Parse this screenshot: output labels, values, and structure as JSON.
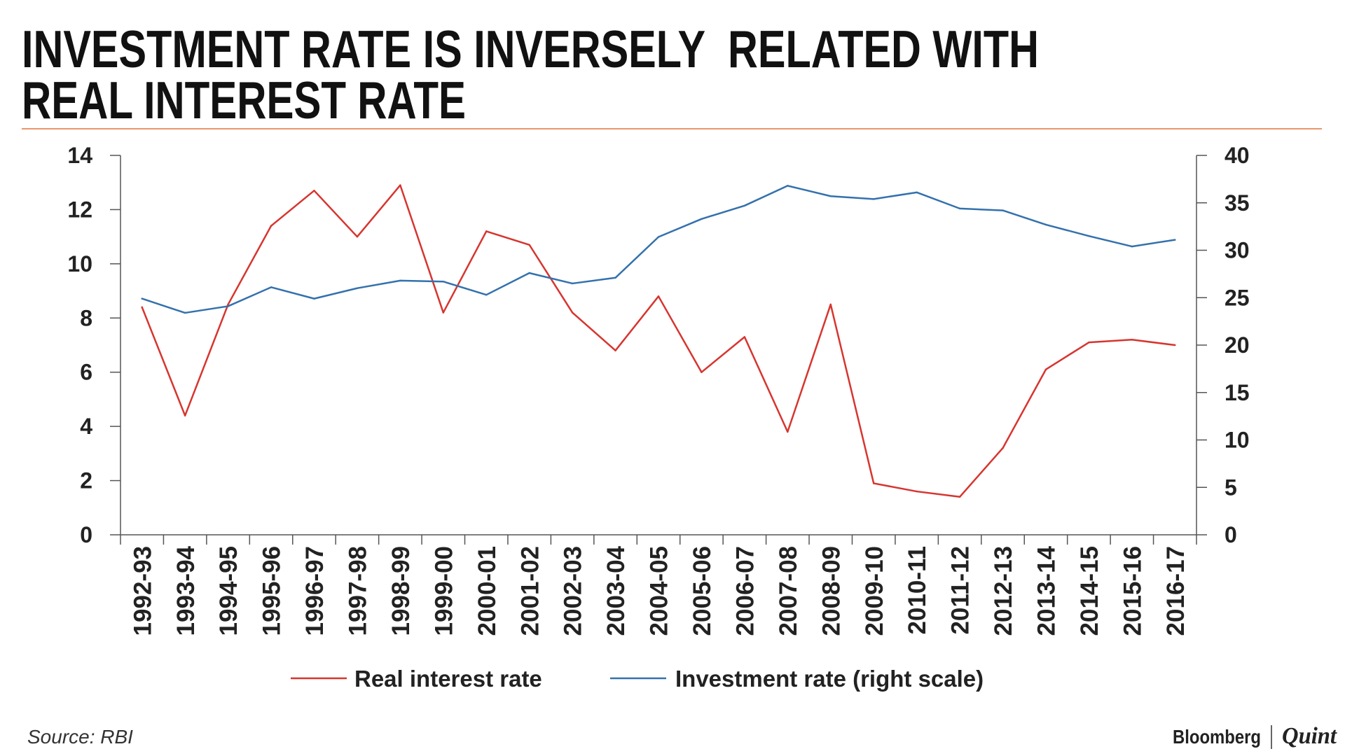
{
  "footer": {
    "source": "Source: RBI",
    "logo": {
      "brand": "Bloomberg",
      "sub": "Quint"
    }
  },
  "colors": {
    "title_rule": "#e3733a",
    "axis": "#555555",
    "text": "#222222"
  },
  "chart_data": {
    "type": "line",
    "title": [
      "INVESTMENT RATE IS INVERSELY  RELATED WITH",
      "REAL INTEREST RATE"
    ],
    "categories": [
      "1992-93",
      "1993-94",
      "1994-95",
      "1995-96",
      "1996-97",
      "1997-98",
      "1998-99",
      "1999-00",
      "2000-01",
      "2001-02",
      "2002-03",
      "2003-04",
      "2004-05",
      "2005-06",
      "2006-07",
      "2007-08",
      "2008-09",
      "2009-10",
      "2010-11",
      "2011-12",
      "2012-13",
      "2013-14",
      "2014-15",
      "2015-16",
      "2016-17"
    ],
    "series": [
      {
        "name": "Real interest rate",
        "y_axis": "left",
        "color": "#d7352f",
        "values": [
          8.4,
          4.4,
          8.5,
          11.4,
          12.7,
          11.0,
          12.9,
          8.2,
          11.2,
          10.7,
          8.2,
          6.8,
          8.8,
          6.0,
          7.3,
          3.8,
          8.5,
          1.9,
          1.6,
          1.4,
          3.2,
          6.1,
          7.1,
          7.2,
          7.0
        ]
      },
      {
        "name": "Investment rate (right scale)",
        "y_axis": "right",
        "color": "#3471ad",
        "values": [
          24.9,
          23.4,
          24.1,
          26.1,
          24.9,
          26.0,
          26.8,
          26.7,
          25.3,
          27.6,
          26.5,
          27.1,
          31.4,
          33.3,
          34.7,
          36.8,
          35.7,
          35.4,
          36.1,
          34.4,
          34.2,
          32.7,
          31.5,
          30.4,
          31.1
        ]
      }
    ],
    "y_left": {
      "min": 0,
      "max": 14,
      "ticks": [
        "0",
        "2",
        "4",
        "6",
        "8",
        "10",
        "12",
        "14"
      ]
    },
    "y_right": {
      "min": 0,
      "max": 40,
      "ticks": [
        "0",
        "5",
        "10",
        "15",
        "20",
        "25",
        "30",
        "35",
        "40"
      ]
    },
    "grid": false,
    "legend": "bottom"
  }
}
